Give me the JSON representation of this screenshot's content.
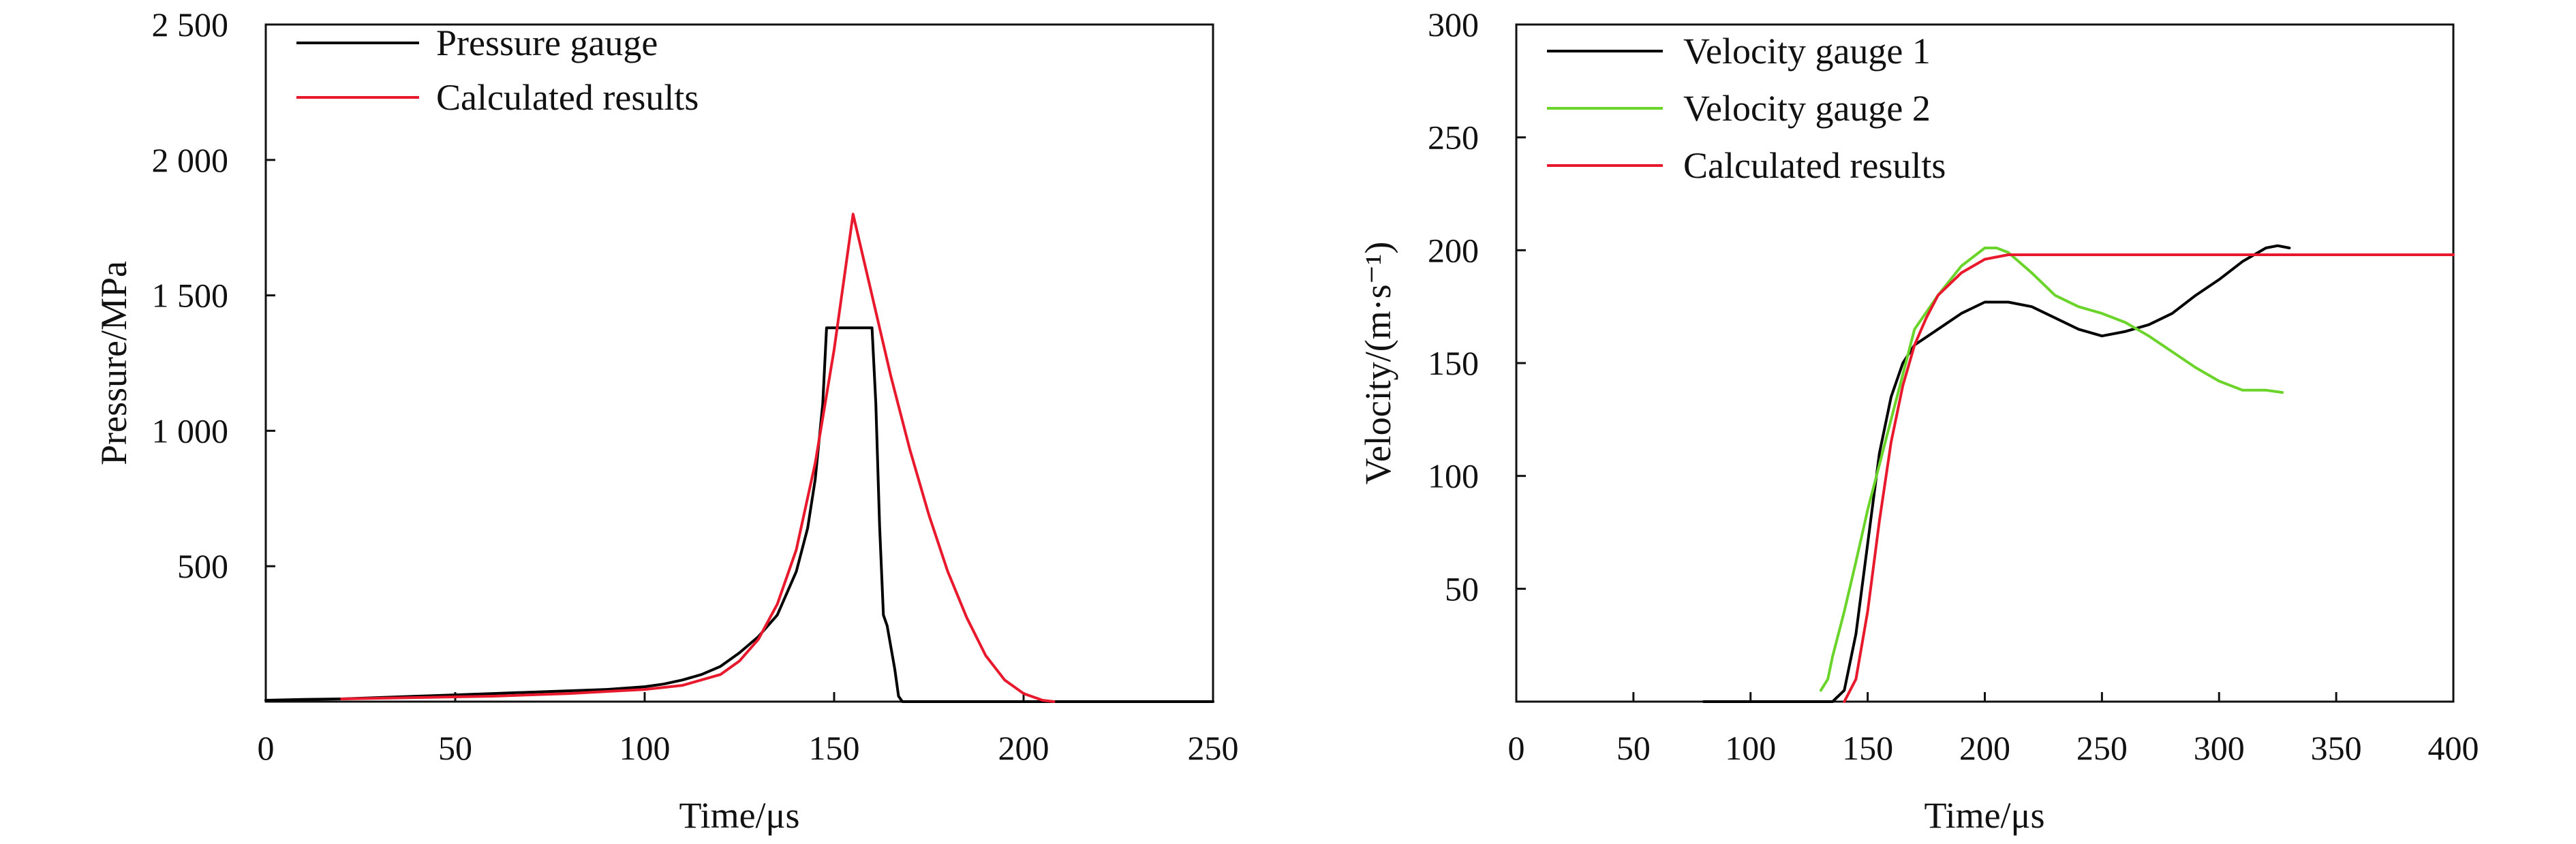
{
  "chart_data": [
    {
      "type": "line",
      "xlabel": "Time/μs",
      "ylabel": "Pressure/MPa",
      "xlim": [
        0,
        250
      ],
      "ylim": [
        0,
        2500
      ],
      "x_ticks": [
        0,
        50,
        100,
        150,
        200,
        250
      ],
      "x_tick_labels": [
        "0",
        "50",
        "100",
        "150",
        "200",
        "250"
      ],
      "y_ticks": [
        500,
        1000,
        1500,
        2000,
        2500
      ],
      "y_tick_labels": [
        "500",
        "1 000",
        "1 500",
        "2 000",
        "2 500"
      ],
      "grid": false,
      "legend_position": "top-left",
      "series": [
        {
          "name": "Pressure gauge",
          "color": "#000000",
          "x": [
            0,
            10,
            20,
            30,
            40,
            50,
            60,
            70,
            80,
            90,
            100,
            105,
            110,
            115,
            120,
            125,
            130,
            135,
            140,
            143,
            145,
            147,
            148,
            150,
            155,
            160,
            161,
            162,
            163,
            164,
            165,
            166,
            167,
            168,
            170,
            180,
            200,
            250
          ],
          "y": [
            5,
            8,
            10,
            15,
            20,
            25,
            30,
            35,
            40,
            45,
            55,
            65,
            80,
            100,
            130,
            180,
            240,
            320,
            480,
            640,
            820,
            1100,
            1380,
            1380,
            1380,
            1380,
            1100,
            650,
            320,
            280,
            200,
            120,
            20,
            0,
            0,
            0,
            0,
            0
          ]
        },
        {
          "name": "Calculated results",
          "color": "#e8192c",
          "x": [
            20,
            40,
            60,
            80,
            100,
            110,
            120,
            125,
            130,
            135,
            140,
            145,
            150,
            153,
            155,
            157,
            160,
            165,
            170,
            175,
            180,
            185,
            190,
            195,
            200,
            205,
            208
          ],
          "y": [
            10,
            15,
            20,
            30,
            45,
            60,
            100,
            150,
            230,
            360,
            560,
            880,
            1300,
            1600,
            1800,
            1680,
            1500,
            1200,
            930,
            690,
            480,
            310,
            170,
            80,
            30,
            5,
            0
          ]
        }
      ]
    },
    {
      "type": "line",
      "xlabel": "Time/μs",
      "ylabel": "Velocity/(m·s⁻¹)",
      "xlim": [
        0,
        400
      ],
      "ylim": [
        0,
        300
      ],
      "x_ticks": [
        0,
        50,
        100,
        150,
        200,
        250,
        300,
        350,
        400
      ],
      "x_tick_labels": [
        "0",
        "50",
        "100",
        "150",
        "200",
        "250",
        "300",
        "350",
        "400"
      ],
      "y_ticks": [
        50,
        100,
        150,
        200,
        250,
        300
      ],
      "y_tick_labels": [
        "50",
        "100",
        "150",
        "200",
        "250",
        "300"
      ],
      "grid": false,
      "legend_position": "top-left",
      "series": [
        {
          "name": "Velocity gauge 1",
          "color": "#000000",
          "x": [
            80,
            100,
            120,
            135,
            140,
            145,
            150,
            155,
            160,
            165,
            170,
            180,
            190,
            200,
            210,
            220,
            230,
            240,
            250,
            260,
            270,
            280,
            290,
            300,
            310,
            320,
            325,
            330
          ],
          "y": [
            0,
            0,
            0,
            0,
            5,
            30,
            70,
            110,
            135,
            150,
            158,
            165,
            172,
            177,
            177,
            175,
            170,
            165,
            162,
            164,
            167,
            172,
            180,
            187,
            195,
            201,
            202,
            201
          ]
        },
        {
          "name": "Velocity gauge 2",
          "color": "#6bd42a",
          "x": [
            130,
            133,
            135,
            140,
            145,
            150,
            155,
            160,
            165,
            170,
            180,
            190,
            200,
            205,
            210,
            220,
            230,
            240,
            250,
            260,
            270,
            280,
            290,
            300,
            310,
            320,
            327
          ],
          "y": [
            5,
            10,
            20,
            40,
            62,
            85,
            105,
            125,
            145,
            165,
            180,
            193,
            201,
            201,
            199,
            190,
            180,
            175,
            172,
            168,
            162,
            155,
            148,
            142,
            138,
            138,
            137
          ]
        },
        {
          "name": "Calculated results",
          "color": "#e8192c",
          "x": [
            140,
            145,
            150,
            155,
            160,
            165,
            170,
            175,
            180,
            190,
            200,
            210,
            215,
            250,
            300,
            350,
            400
          ],
          "y": [
            0,
            10,
            40,
            80,
            115,
            140,
            158,
            170,
            180,
            190,
            196,
            198,
            198,
            198,
            198,
            198,
            198
          ]
        }
      ]
    }
  ]
}
